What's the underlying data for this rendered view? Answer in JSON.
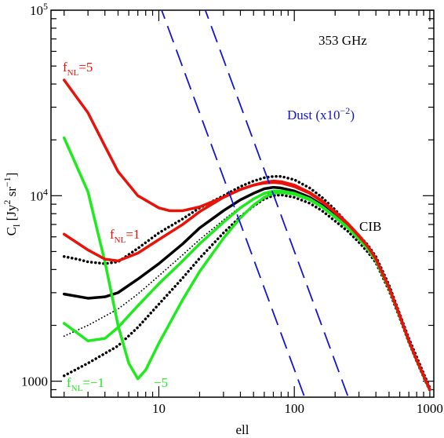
{
  "chart_data": {
    "type": "line",
    "xlabel": "ell",
    "ylabel_main": "C",
    "ylabel_sub": "l",
    "ylabel_rest": "[Jy",
    "ylabel_sup1": "2",
    "ylabel_mid": " sr",
    "ylabel_sup2": "−1",
    "ylabel_end": "]",
    "xscale": "log",
    "yscale": "log",
    "xlim": [
      1.6,
      1070
    ],
    "ylim": [
      820,
      100000
    ],
    "x_ticks": [
      {
        "value": 10,
        "label": "10"
      },
      {
        "value": 100,
        "label": "100"
      },
      {
        "value": 1000,
        "label": "1000"
      }
    ],
    "y_ticks": [
      {
        "value": 1000,
        "label": "1000"
      },
      {
        "value": 10000,
        "label": "10",
        "sup": "4"
      },
      {
        "value": 100000,
        "label": "10",
        "sup": "5"
      }
    ],
    "colors": {
      "red": "#e8120b",
      "green": "#1eea1e",
      "black": "#000000",
      "blue": "#1414d4"
    },
    "annotations": {
      "frequency": "353 GHz",
      "cib": "CIB",
      "dust_main": "Dust (x10",
      "dust_sup": "−2",
      "dust_end": ")",
      "fnl5_main": "f",
      "fnl5_sub": "NL",
      "fnl5_val": "=5",
      "fnl1_main": "f",
      "fnl1_sub": "NL",
      "fnl1_val": "=1",
      "fnlm1_main": "f",
      "fnlm1_sub": "NL",
      "fnlm1_val": "=−1",
      "fnlm5_val": "−5"
    },
    "series": [
      {
        "key": "cib_upper",
        "color": "black",
        "style": "dotted",
        "width": 3.5,
        "points": [
          [
            2,
            4700
          ],
          [
            2.5,
            4550
          ],
          [
            3,
            4400
          ],
          [
            4,
            4300
          ],
          [
            5,
            4400
          ],
          [
            7,
            5200
          ],
          [
            10,
            6300
          ],
          [
            15,
            7500
          ],
          [
            20,
            8600
          ],
          [
            30,
            10000
          ],
          [
            40,
            11200
          ],
          [
            50,
            12000
          ],
          [
            60,
            12500
          ],
          [
            70,
            12700
          ],
          [
            80,
            12700
          ],
          [
            100,
            12200
          ],
          [
            130,
            11000
          ],
          [
            160,
            9800
          ],
          [
            200,
            8400
          ],
          [
            250,
            7000
          ],
          [
            300,
            6100
          ],
          [
            350,
            5400
          ],
          [
            400,
            4700
          ],
          [
            500,
            3300
          ],
          [
            600,
            2300
          ],
          [
            700,
            1700
          ],
          [
            800,
            1350
          ],
          [
            900,
            1100
          ],
          [
            1000,
            920
          ]
        ]
      },
      {
        "key": "cib_mid",
        "color": "black",
        "style": "solid",
        "width": 3.5,
        "points": [
          [
            2,
            2950
          ],
          [
            3,
            2800
          ],
          [
            4,
            2850
          ],
          [
            5,
            3000
          ],
          [
            7,
            3550
          ],
          [
            10,
            4300
          ],
          [
            15,
            5500
          ],
          [
            20,
            6700
          ],
          [
            30,
            8300
          ],
          [
            40,
            9500
          ],
          [
            50,
            10300
          ],
          [
            60,
            10900
          ],
          [
            70,
            11100
          ],
          [
            80,
            11000
          ],
          [
            100,
            10600
          ],
          [
            130,
            9800
          ],
          [
            160,
            8900
          ],
          [
            200,
            7800
          ],
          [
            250,
            6800
          ],
          [
            300,
            5900
          ],
          [
            350,
            5200
          ],
          [
            400,
            4500
          ],
          [
            500,
            3200
          ],
          [
            600,
            2250
          ],
          [
            700,
            1650
          ],
          [
            800,
            1300
          ],
          [
            900,
            1070
          ],
          [
            1000,
            900
          ]
        ]
      },
      {
        "key": "cib_lower_thin",
        "color": "black",
        "style": "dotted",
        "width": 1.8,
        "points": [
          [
            2,
            1750
          ],
          [
            3,
            2000
          ],
          [
            5,
            2450
          ],
          [
            7,
            2950
          ],
          [
            10,
            3700
          ],
          [
            15,
            4800
          ],
          [
            20,
            5800
          ],
          [
            30,
            7400
          ],
          [
            40,
            8700
          ],
          [
            50,
            9600
          ],
          [
            60,
            10200
          ],
          [
            70,
            10400
          ],
          [
            80,
            10400
          ],
          [
            100,
            10100
          ],
          [
            130,
            9400
          ],
          [
            160,
            8600
          ],
          [
            200,
            7600
          ],
          [
            250,
            6700
          ],
          [
            300,
            5800
          ],
          [
            350,
            5100
          ],
          [
            400,
            4450
          ],
          [
            500,
            3150
          ],
          [
            600,
            2230
          ],
          [
            700,
            1640
          ],
          [
            800,
            1290
          ],
          [
            900,
            1060
          ],
          [
            1000,
            900
          ]
        ]
      },
      {
        "key": "cib_lower",
        "color": "black",
        "style": "dotted",
        "width": 3.5,
        "points": [
          [
            2,
            1070
          ],
          [
            3,
            1250
          ],
          [
            5,
            1550
          ],
          [
            7,
            1950
          ],
          [
            10,
            2600
          ],
          [
            15,
            3600
          ],
          [
            20,
            4600
          ],
          [
            30,
            6300
          ],
          [
            40,
            7700
          ],
          [
            50,
            8800
          ],
          [
            60,
            9600
          ],
          [
            70,
            10000
          ],
          [
            80,
            10100
          ],
          [
            100,
            9800
          ],
          [
            130,
            9100
          ],
          [
            160,
            8300
          ],
          [
            200,
            7300
          ],
          [
            250,
            6400
          ],
          [
            300,
            5600
          ],
          [
            350,
            4950
          ],
          [
            400,
            4350
          ],
          [
            500,
            3080
          ],
          [
            600,
            2190
          ],
          [
            700,
            1620
          ],
          [
            800,
            1280
          ],
          [
            900,
            1050
          ],
          [
            1000,
            890
          ]
        ]
      },
      {
        "key": "green_m1",
        "color": "green",
        "style": "solid",
        "width": 3.5,
        "points": [
          [
            2,
            2050
          ],
          [
            3,
            1650
          ],
          [
            4,
            1700
          ],
          [
            5,
            1950
          ],
          [
            7,
            2550
          ],
          [
            10,
            3350
          ],
          [
            15,
            4450
          ],
          [
            20,
            5500
          ],
          [
            30,
            7200
          ],
          [
            40,
            8600
          ],
          [
            50,
            9600
          ],
          [
            60,
            10300
          ],
          [
            70,
            10600
          ],
          [
            80,
            10600
          ],
          [
            100,
            10300
          ],
          [
            130,
            9600
          ],
          [
            160,
            8750
          ],
          [
            200,
            7700
          ],
          [
            250,
            6700
          ],
          [
            300,
            5850
          ],
          [
            350,
            5150
          ],
          [
            400,
            4480
          ],
          [
            500,
            3170
          ],
          [
            600,
            2240
          ],
          [
            700,
            1645
          ],
          [
            800,
            1295
          ],
          [
            900,
            1065
          ],
          [
            1000,
            900
          ]
        ]
      },
      {
        "key": "green_m5",
        "color": "green",
        "style": "solid",
        "width": 3.5,
        "points": [
          [
            2,
            20500
          ],
          [
            3,
            10500
          ],
          [
            4,
            4400
          ],
          [
            5,
            2000
          ],
          [
            6,
            1250
          ],
          [
            7,
            1030
          ],
          [
            8,
            1150
          ],
          [
            10,
            1600
          ],
          [
            15,
            2750
          ],
          [
            20,
            3900
          ],
          [
            30,
            5900
          ],
          [
            40,
            7600
          ],
          [
            50,
            8900
          ],
          [
            60,
            9800
          ],
          [
            70,
            10300
          ],
          [
            80,
            10400
          ],
          [
            100,
            10200
          ],
          [
            130,
            9500
          ],
          [
            160,
            8700
          ],
          [
            200,
            7650
          ],
          [
            250,
            6680
          ],
          [
            300,
            5830
          ],
          [
            350,
            5140
          ],
          [
            400,
            4470
          ],
          [
            500,
            3160
          ],
          [
            600,
            2235
          ],
          [
            700,
            1643
          ],
          [
            800,
            1293
          ],
          [
            900,
            1063
          ],
          [
            1000,
            898
          ]
        ]
      },
      {
        "key": "red_1",
        "color": "red",
        "style": "solid",
        "width": 3.5,
        "points": [
          [
            2,
            6200
          ],
          [
            3,
            5100
          ],
          [
            4,
            4550
          ],
          [
            5,
            4450
          ],
          [
            7,
            4900
          ],
          [
            10,
            5800
          ],
          [
            15,
            7000
          ],
          [
            20,
            8200
          ],
          [
            30,
            9800
          ],
          [
            40,
            10800
          ],
          [
            50,
            11400
          ],
          [
            60,
            11700
          ],
          [
            70,
            11800
          ],
          [
            80,
            11700
          ],
          [
            100,
            11200
          ],
          [
            130,
            10300
          ],
          [
            160,
            9300
          ],
          [
            200,
            8100
          ],
          [
            250,
            7000
          ],
          [
            300,
            6050
          ],
          [
            350,
            5300
          ],
          [
            400,
            4560
          ],
          [
            500,
            3200
          ],
          [
            600,
            2250
          ],
          [
            700,
            1650
          ],
          [
            800,
            1300
          ],
          [
            900,
            1070
          ],
          [
            1000,
            900
          ]
        ]
      },
      {
        "key": "red_5",
        "color": "red",
        "style": "solid",
        "width": 3.5,
        "points": [
          [
            2,
            42000
          ],
          [
            3,
            28000
          ],
          [
            4,
            18500
          ],
          [
            5,
            13500
          ],
          [
            7,
            10000
          ],
          [
            10,
            8600
          ],
          [
            12,
            8300
          ],
          [
            15,
            8300
          ],
          [
            20,
            8700
          ],
          [
            30,
            9800
          ],
          [
            40,
            10800
          ],
          [
            50,
            11400
          ],
          [
            60,
            11800
          ],
          [
            70,
            12000
          ],
          [
            80,
            11900
          ],
          [
            100,
            11400
          ],
          [
            130,
            10400
          ],
          [
            160,
            9400
          ],
          [
            200,
            8200
          ],
          [
            250,
            7050
          ],
          [
            300,
            6100
          ],
          [
            350,
            5330
          ],
          [
            400,
            4580
          ],
          [
            500,
            3210
          ],
          [
            600,
            2260
          ],
          [
            700,
            1655
          ],
          [
            800,
            1302
          ],
          [
            900,
            1071
          ],
          [
            1000,
            902
          ]
        ]
      },
      {
        "key": "dust_1",
        "color": "blue",
        "style": "dashed",
        "width": 1.8,
        "points": [
          [
            10,
            110000
          ],
          [
            119,
            820
          ]
        ]
      },
      {
        "key": "dust_2",
        "color": "blue",
        "style": "dashed",
        "width": 1.8,
        "points": [
          [
            21,
            110000
          ],
          [
            250,
            820
          ]
        ]
      }
    ]
  }
}
